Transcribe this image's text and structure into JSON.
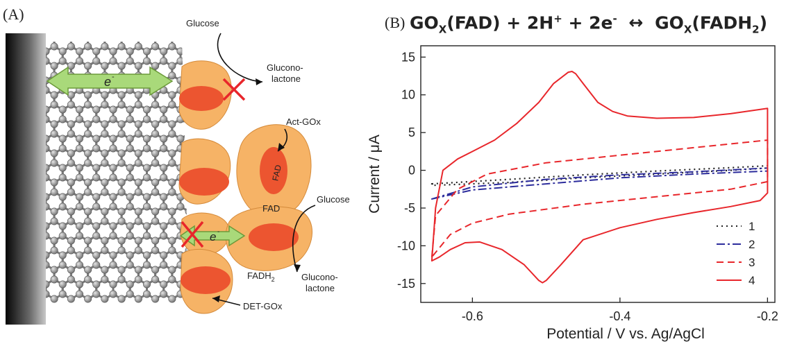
{
  "panel_a": {
    "label": "(A)",
    "electron_label": "e",
    "electron_sup": "-",
    "electron_label_2": "e",
    "labels": {
      "glucose_top": "Glucose",
      "gluconolactone_top_1": "Glucono-",
      "gluconolactone_top_2": "lactone",
      "act_gox": "Act-GOx",
      "fad_inner": "FAD",
      "fad_outer": "FAD",
      "glucose_mid": "Glucose",
      "fadh2": "FADH",
      "fadh2_sub": "2",
      "gluconolactone_bot_1": "Glucono-",
      "gluconolactone_bot_2": "lactone",
      "det_gox": "DET-GOx"
    },
    "colors": {
      "enzyme": "#f6b366",
      "enzyme_core": "#ec5530",
      "arrow": "#a9d97a",
      "cross": "#e8262b"
    }
  },
  "panel_b": {
    "label": "(B)",
    "equation": {
      "p1": "GO",
      "s1": "X",
      "p2": "(FAD) + 2H",
      "sup1": "+",
      "p3": " + 2e",
      "sup2": "-",
      "arrow": "↔",
      "p4": "GO",
      "s2": "X",
      "p5": "(FADH",
      "s3": "2",
      "p6": ")"
    }
  },
  "chart_data": {
    "type": "line",
    "title": "",
    "xlabel": "Potential / V vs. Ag/AgCl",
    "ylabel": "Current / μA",
    "xlim": [
      -0.67,
      -0.19
    ],
    "ylim": [
      -17.5,
      16.5
    ],
    "xticks": [
      -0.6,
      -0.4,
      -0.2
    ],
    "xtick_labels": [
      "-0.6",
      "-0.4",
      "-0.2"
    ],
    "yticks": [
      15,
      10,
      5,
      0,
      -5,
      -10,
      -15
    ],
    "ytick_labels": [
      "15",
      "10",
      "5",
      "0",
      "-5",
      "-10",
      "-15"
    ],
    "grid": false,
    "legend_position": "bottom-right",
    "series": [
      {
        "name": "1",
        "color": "#222222",
        "dash": "dotted",
        "x": [
          -0.655,
          -0.55,
          -0.45,
          -0.35,
          -0.25,
          -0.2,
          -0.2,
          -0.25,
          -0.35,
          -0.45,
          -0.55,
          -0.655
        ],
        "y": [
          -1.8,
          -1.2,
          -0.6,
          -0.1,
          0.35,
          0.6,
          0.3,
          0.0,
          -0.5,
          -1.0,
          -1.6,
          -2.0
        ]
      },
      {
        "name": "2",
        "color": "#2c2c9c",
        "dash": "dashdot",
        "x": [
          -0.655,
          -0.6,
          -0.5,
          -0.4,
          -0.3,
          -0.2,
          -0.2,
          -0.3,
          -0.4,
          -0.5,
          -0.6,
          -0.655
        ],
        "y": [
          -3.8,
          -2.2,
          -1.2,
          -0.6,
          -0.2,
          0.3,
          -0.1,
          -0.5,
          -1.0,
          -1.8,
          -2.6,
          -3.8
        ]
      },
      {
        "name": "3",
        "color": "#e8262b",
        "dash": "dashed",
        "x": [
          -0.655,
          -0.65,
          -0.62,
          -0.58,
          -0.5,
          -0.4,
          -0.3,
          -0.2,
          -0.2,
          -0.25,
          -0.35,
          -0.45,
          -0.55,
          -0.6,
          -0.63,
          -0.655
        ],
        "y": [
          -11.5,
          -6.0,
          -2.5,
          -0.5,
          1.0,
          2.0,
          3.0,
          4.0,
          -1.5,
          -2.5,
          -3.5,
          -4.5,
          -5.8,
          -7.0,
          -8.5,
          -11.5
        ]
      },
      {
        "name": "4",
        "color": "#e8262b",
        "dash": "solid",
        "x": [
          -0.655,
          -0.65,
          -0.64,
          -0.62,
          -0.6,
          -0.57,
          -0.54,
          -0.51,
          -0.49,
          -0.47,
          -0.465,
          -0.46,
          -0.45,
          -0.43,
          -0.41,
          -0.39,
          -0.35,
          -0.3,
          -0.25,
          -0.2,
          -0.2,
          -0.21,
          -0.25,
          -0.3,
          -0.35,
          -0.4,
          -0.45,
          -0.48,
          -0.5,
          -0.505,
          -0.51,
          -0.53,
          -0.56,
          -0.59,
          -0.61,
          -0.63,
          -0.645,
          -0.655
        ],
        "y": [
          -12.0,
          -5.0,
          0.0,
          1.5,
          2.5,
          4.0,
          6.2,
          9.0,
          11.5,
          13.0,
          13.1,
          12.8,
          11.5,
          9.0,
          7.8,
          7.2,
          6.9,
          7.0,
          7.5,
          8.2,
          -3.0,
          -4.0,
          -4.8,
          -5.6,
          -6.5,
          -7.6,
          -9.2,
          -12.5,
          -14.6,
          -14.9,
          -14.6,
          -12.5,
          -10.5,
          -9.5,
          -9.6,
          -10.5,
          -11.5,
          -12.0
        ]
      }
    ]
  }
}
